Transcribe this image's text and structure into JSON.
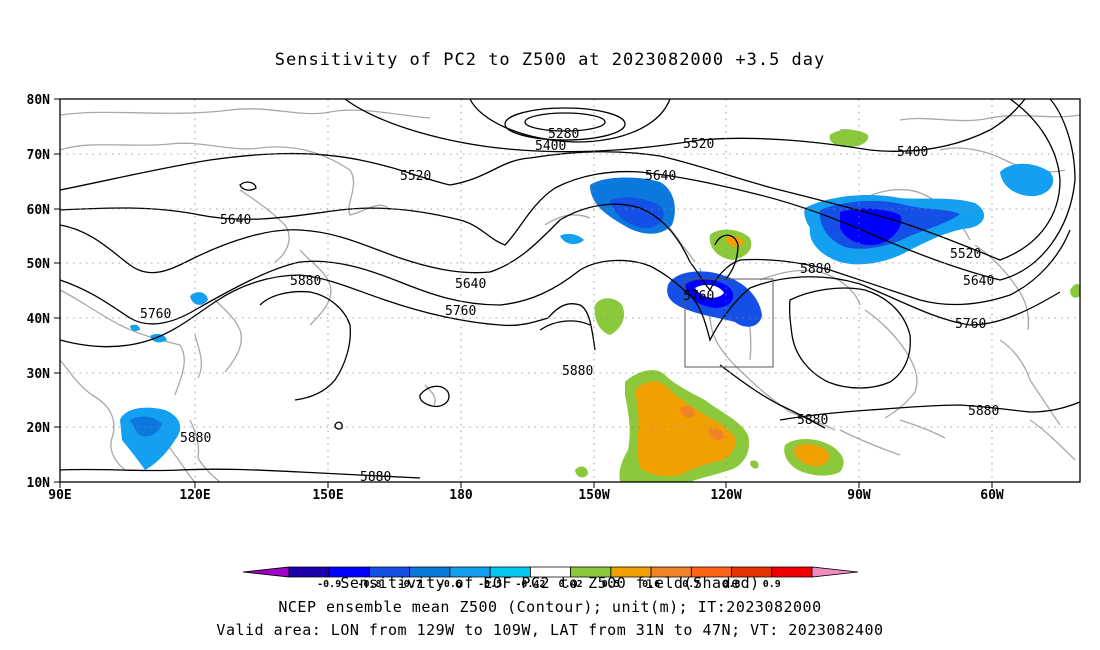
{
  "title": "Sensitivity of PC2 to Z500 at 2023082000 +3.5 day",
  "lat_labels": [
    "80N",
    "70N",
    "60N",
    "50N",
    "40N",
    "30N",
    "20N",
    "10N"
  ],
  "lon_labels": [
    "90E",
    "120E",
    "150E",
    "180",
    "150W",
    "120W",
    "90W",
    "60W"
  ],
  "contour_labels": [
    "5280",
    "5400",
    "5520",
    "5640",
    "5400",
    "5520",
    "5640",
    "5520",
    "5640",
    "5760",
    "5880",
    "5640",
    "5760",
    "5880",
    "5760",
    "5880",
    "5880",
    "5760",
    "5880",
    "5880"
  ],
  "colorbar": {
    "tick_labels": [
      "-0.9",
      "-0.8",
      "-0.7",
      "-0.6",
      "-0.5",
      "-0.42",
      "0.42",
      "0.5",
      "0.6",
      "0.7",
      "0.8",
      "0.9"
    ],
    "colors": [
      "#a000c8",
      "#1e00aa",
      "#0000ff",
      "#1450e6",
      "#0a78dc",
      "#14a0f0",
      "#00c8f0",
      "#ffffff",
      "#8cc83c",
      "#f0a000",
      "#f08228",
      "#fa6414",
      "#e63200",
      "#f00000",
      "#f08cbe"
    ]
  },
  "captions": {
    "line1": "Sensitivity of EOF PC2 to Z500 field(Shaded)",
    "line2": "NCEP ensemble mean Z500 (Contour); unit(m); IT:2023082000",
    "line3": "Valid area: LON from 129W to 109W, LAT from 31N to 47N; VT: 2023082400"
  }
}
